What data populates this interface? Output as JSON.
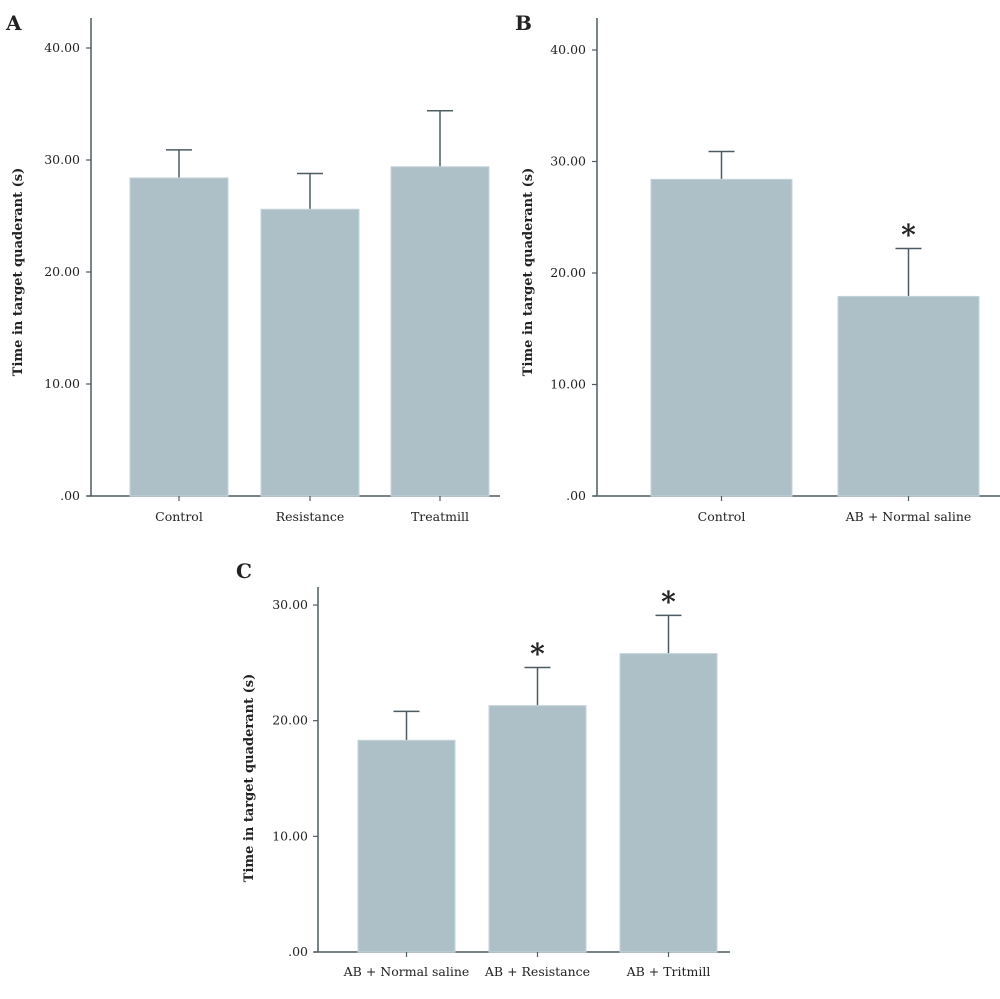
{
  "colors": {
    "bar": "#adc0c8",
    "axis": "#4d5c62",
    "text": "#222222"
  },
  "chart_data": [
    {
      "panel": "A",
      "type": "bar",
      "ylabel": "Time in target quaderant (s)",
      "ylim": [
        0,
        40
      ],
      "yticks": [
        ".00",
        "10.00",
        "20.00",
        "30.00",
        "40.00"
      ],
      "categories": [
        "Control",
        "Resistance",
        "Treatmill"
      ],
      "values": [
        28.4,
        25.6,
        29.4
      ],
      "error_upper": [
        30.9,
        28.8,
        34.4
      ],
      "significance": [
        "",
        "",
        ""
      ]
    },
    {
      "panel": "B",
      "type": "bar",
      "ylabel": "Time in target quaderant (s)",
      "ylim": [
        0,
        40
      ],
      "yticks": [
        ".00",
        "10.00",
        "20.00",
        "30.00",
        "40.00"
      ],
      "categories": [
        "Control",
        "AB + Normal saline"
      ],
      "values": [
        28.4,
        17.9
      ],
      "error_upper": [
        30.9,
        22.2
      ],
      "significance": [
        "",
        "*"
      ]
    },
    {
      "panel": "C",
      "type": "bar",
      "ylabel": "Time in target quaderant (s)",
      "ylim": [
        0,
        30
      ],
      "yticks": [
        ".00",
        "10.00",
        "20.00",
        "30.00"
      ],
      "categories": [
        "AB + Normal saline",
        "AB + Resistance",
        "AB + Tritmill"
      ],
      "values": [
        18.3,
        21.3,
        25.8
      ],
      "error_upper": [
        20.8,
        24.6,
        29.1
      ],
      "significance": [
        "",
        "*",
        "*"
      ]
    }
  ]
}
